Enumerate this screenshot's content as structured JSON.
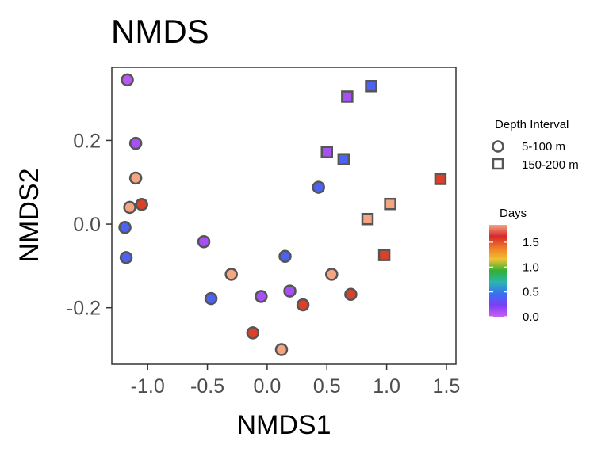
{
  "chart_data": {
    "type": "scatter",
    "title": "NMDS",
    "xlabel": "NMDS1",
    "ylabel": "NMDS2",
    "xlim": [
      -1.3,
      1.58
    ],
    "ylim": [
      -0.335,
      0.375
    ],
    "x_ticks": [
      -1.0,
      -0.5,
      0.0,
      0.5,
      1.0,
      1.5
    ],
    "x_tick_labels": [
      "-1.0",
      "-0.5",
      "0.0",
      "0.5",
      "1.0",
      "1.5"
    ],
    "y_ticks": [
      -0.2,
      0.0,
      0.2
    ],
    "y_tick_labels": [
      "-0.2",
      "0.0",
      "0.2"
    ],
    "grid": false,
    "shape_legend": {
      "title": "Depth Interval",
      "entries": [
        {
          "label": "5-100 m",
          "shape": "circle"
        },
        {
          "label": "150-200 m",
          "shape": "square"
        }
      ]
    },
    "color_legend": {
      "title": "Days",
      "range": [
        0.0,
        1.85
      ],
      "breaks": [
        0.0,
        0.5,
        1.0,
        1.5
      ],
      "break_labels": [
        "0.0",
        "0.5",
        "1.0",
        "1.5"
      ],
      "colors": [
        "#c860f2",
        "#7a3ff5",
        "#3a6ff2",
        "#2bb5b0",
        "#32b033",
        "#f1c232",
        "#ef7a28",
        "#d6282a",
        "#f4a582"
      ]
    },
    "points": [
      {
        "x": -1.17,
        "y": 0.345,
        "shape": "circle",
        "days": 0.05
      },
      {
        "x": -1.1,
        "y": 0.193,
        "shape": "circle",
        "days": 0.1
      },
      {
        "x": -1.1,
        "y": 0.11,
        "shape": "circle",
        "days": 1.85
      },
      {
        "x": -1.15,
        "y": 0.04,
        "shape": "circle",
        "days": 1.85
      },
      {
        "x": -1.05,
        "y": 0.047,
        "shape": "circle",
        "days": 1.55
      },
      {
        "x": -1.19,
        "y": -0.008,
        "shape": "circle",
        "days": 0.4
      },
      {
        "x": -1.18,
        "y": -0.08,
        "shape": "circle",
        "days": 0.4
      },
      {
        "x": -0.53,
        "y": -0.042,
        "shape": "circle",
        "days": 0.1
      },
      {
        "x": -0.3,
        "y": -0.12,
        "shape": "circle",
        "days": 1.85
      },
      {
        "x": -0.47,
        "y": -0.178,
        "shape": "circle",
        "days": 0.4
      },
      {
        "x": -0.05,
        "y": -0.173,
        "shape": "circle",
        "days": 0.1
      },
      {
        "x": -0.12,
        "y": -0.26,
        "shape": "circle",
        "days": 1.55
      },
      {
        "x": 0.12,
        "y": -0.3,
        "shape": "circle",
        "days": 1.85
      },
      {
        "x": 0.15,
        "y": -0.077,
        "shape": "circle",
        "days": 0.4
      },
      {
        "x": 0.19,
        "y": -0.16,
        "shape": "circle",
        "days": 0.1
      },
      {
        "x": 0.3,
        "y": -0.193,
        "shape": "circle",
        "days": 1.55
      },
      {
        "x": 0.43,
        "y": 0.088,
        "shape": "circle",
        "days": 0.4
      },
      {
        "x": 0.54,
        "y": -0.12,
        "shape": "circle",
        "days": 1.85
      },
      {
        "x": 0.7,
        "y": -0.168,
        "shape": "circle",
        "days": 1.55
      },
      {
        "x": 0.67,
        "y": 0.305,
        "shape": "square",
        "days": 0.1
      },
      {
        "x": 0.87,
        "y": 0.33,
        "shape": "square",
        "days": 0.4
      },
      {
        "x": 0.5,
        "y": 0.172,
        "shape": "square",
        "days": 0.1
      },
      {
        "x": 0.64,
        "y": 0.155,
        "shape": "square",
        "days": 0.4
      },
      {
        "x": 0.84,
        "y": 0.012,
        "shape": "square",
        "days": 1.85
      },
      {
        "x": 1.03,
        "y": 0.048,
        "shape": "square",
        "days": 1.85
      },
      {
        "x": 0.98,
        "y": -0.074,
        "shape": "square",
        "days": 1.55
      },
      {
        "x": 1.45,
        "y": 0.108,
        "shape": "square",
        "days": 1.55
      }
    ]
  }
}
